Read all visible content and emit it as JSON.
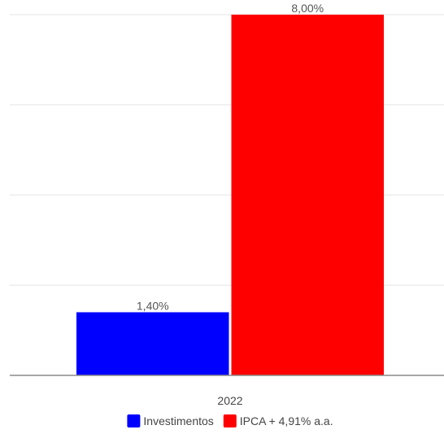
{
  "chart_data": {
    "type": "bar",
    "categories": [
      "2022"
    ],
    "series": [
      {
        "name": "Investimentos",
        "values": [
          1.4
        ],
        "labels": [
          "1,40%"
        ],
        "color": "#0000ff"
      },
      {
        "name": "IPCA + 4,91% a.a.",
        "values": [
          8.0
        ],
        "labels": [
          "8,00%"
        ],
        "color": "#ff0000"
      }
    ],
    "ylim": [
      0,
      8
    ],
    "gridlines": [
      0,
      2,
      4,
      6,
      8
    ],
    "grid": true,
    "legend_position": "bottom",
    "title": "",
    "xlabel": "",
    "ylabel": ""
  }
}
